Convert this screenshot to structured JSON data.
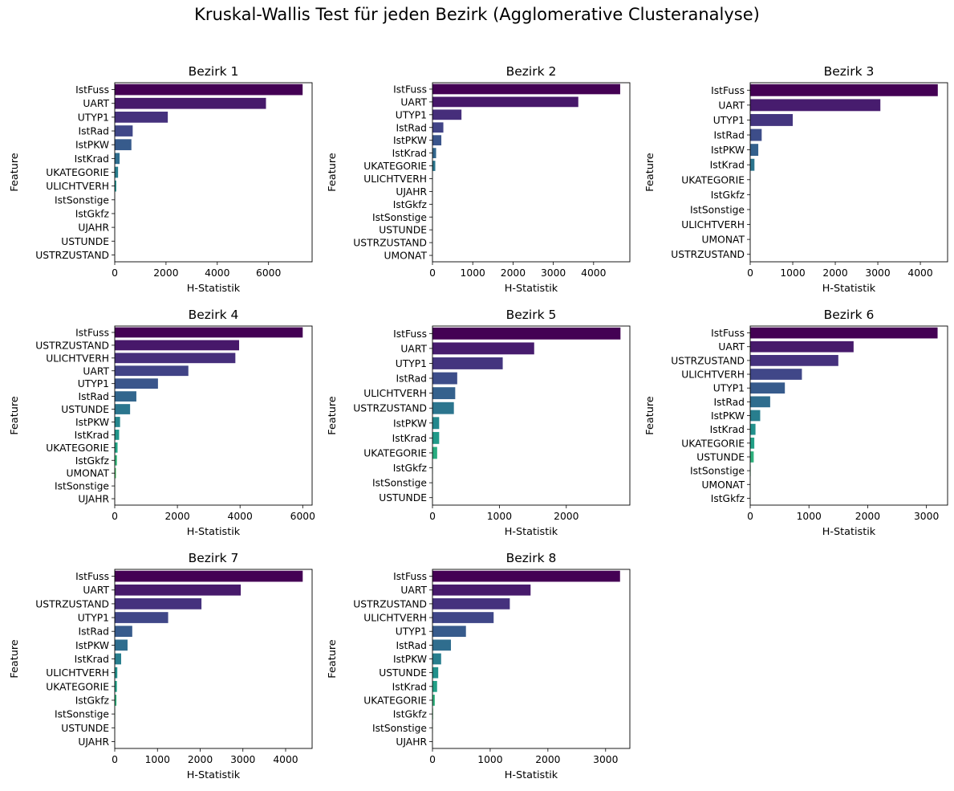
{
  "figure": {
    "title": "Kruskal-Wallis Test für jeden Bezirk (Agglomerative Clusteranalyse)"
  },
  "chart_data": [
    {
      "type": "bar",
      "orientation": "horizontal",
      "title": "Bezirk 1",
      "xlabel": "H-Statistik",
      "ylabel": "Feature",
      "xlim": [
        0,
        7700
      ],
      "xticks": [
        0,
        2000,
        4000,
        6000
      ],
      "categories": [
        "IstFuss",
        "UART",
        "UTYP1",
        "IstRad",
        "IstPKW",
        "IstKrad",
        "UKATEGORIE",
        "ULICHTVERH",
        "IstSonstige",
        "IstGkfz",
        "UJAHR",
        "USTUNDE",
        "USTRZUSTAND"
      ],
      "values": [
        7330,
        5900,
        2070,
        700,
        650,
        190,
        130,
        60,
        5,
        3,
        2,
        1,
        1
      ]
    },
    {
      "type": "bar",
      "orientation": "horizontal",
      "title": "Bezirk 2",
      "xlabel": "H-Statistik",
      "ylabel": "Feature",
      "xlim": [
        0,
        4900
      ],
      "xticks": [
        0,
        1000,
        2000,
        3000,
        4000
      ],
      "categories": [
        "IstFuss",
        "UART",
        "UTYP1",
        "IstRad",
        "IstPKW",
        "IstKrad",
        "UKATEGORIE",
        "ULICHTVERH",
        "UJAHR",
        "IstGkfz",
        "IstSonstige",
        "USTUNDE",
        "USTRZUSTAND",
        "UMONAT"
      ],
      "values": [
        4660,
        3620,
        720,
        270,
        220,
        90,
        70,
        5,
        3,
        2,
        2,
        1,
        1,
        1
      ]
    },
    {
      "type": "bar",
      "orientation": "horizontal",
      "title": "Bezirk 3",
      "xlabel": "H-Statistik",
      "ylabel": "Feature",
      "xlim": [
        0,
        4640
      ],
      "xticks": [
        0,
        1000,
        2000,
        3000,
        4000
      ],
      "categories": [
        "IstFuss",
        "UART",
        "UTYP1",
        "IstRad",
        "IstPKW",
        "IstKrad",
        "UKATEGORIE",
        "IstGkfz",
        "IstSonstige",
        "ULICHTVERH",
        "UMONAT",
        "USTRZUSTAND"
      ],
      "values": [
        4410,
        3060,
        1000,
        270,
        190,
        100,
        5,
        3,
        2,
        2,
        1,
        1
      ]
    },
    {
      "type": "bar",
      "orientation": "horizontal",
      "title": "Bezirk 4",
      "xlabel": "H-Statistik",
      "ylabel": "Feature",
      "xlim": [
        0,
        6300
      ],
      "xticks": [
        0,
        2000,
        4000,
        6000
      ],
      "categories": [
        "IstFuss",
        "USTRZUSTAND",
        "ULICHTVERH",
        "UART",
        "UTYP1",
        "IstRad",
        "USTUNDE",
        "IstPKW",
        "IstKrad",
        "UKATEGORIE",
        "IstGkfz",
        "UMONAT",
        "IstSonstige",
        "UJAHR"
      ],
      "values": [
        6000,
        3970,
        3850,
        2350,
        1380,
        690,
        490,
        170,
        140,
        90,
        70,
        40,
        5,
        2
      ]
    },
    {
      "type": "bar",
      "orientation": "horizontal",
      "title": "Bezirk 5",
      "xlabel": "H-Statistik",
      "ylabel": "Feature",
      "xlim": [
        0,
        2950
      ],
      "xticks": [
        0,
        1000,
        2000
      ],
      "categories": [
        "IstFuss",
        "UART",
        "UTYP1",
        "IstRad",
        "ULICHTVERH",
        "USTRZUSTAND",
        "IstPKW",
        "IstKrad",
        "UKATEGORIE",
        "IstGkfz",
        "IstSonstige",
        "USTUNDE"
      ],
      "values": [
        2810,
        1520,
        1050,
        370,
        340,
        320,
        100,
        100,
        70,
        5,
        3,
        2
      ]
    },
    {
      "type": "bar",
      "orientation": "horizontal",
      "title": "Bezirk 6",
      "xlabel": "H-Statistik",
      "ylabel": "Feature",
      "xlim": [
        0,
        3360
      ],
      "xticks": [
        0,
        1000,
        2000,
        3000
      ],
      "categories": [
        "IstFuss",
        "UART",
        "USTRZUSTAND",
        "ULICHTVERH",
        "UTYP1",
        "IstRad",
        "IstPKW",
        "IstKrad",
        "UKATEGORIE",
        "USTUNDE",
        "IstSonstige",
        "UMONAT",
        "IstGkfz"
      ],
      "values": [
        3190,
        1760,
        1500,
        880,
        590,
        340,
        170,
        90,
        70,
        60,
        8,
        3,
        2
      ]
    },
    {
      "type": "bar",
      "orientation": "horizontal",
      "title": "Bezirk 7",
      "xlabel": "H-Statistik",
      "ylabel": "Feature",
      "xlim": [
        0,
        4620
      ],
      "xticks": [
        0,
        1000,
        2000,
        3000,
        4000
      ],
      "categories": [
        "IstFuss",
        "UART",
        "USTRZUSTAND",
        "UTYP1",
        "IstRad",
        "IstPKW",
        "IstKrad",
        "ULICHTVERH",
        "UKATEGORIE",
        "IstGkfz",
        "IstSonstige",
        "USTUNDE",
        "UJAHR"
      ],
      "values": [
        4400,
        2950,
        2030,
        1250,
        410,
        300,
        150,
        60,
        50,
        40,
        10,
        3,
        1
      ]
    },
    {
      "type": "bar",
      "orientation": "horizontal",
      "title": "Bezirk 8",
      "xlabel": "H-Statistik",
      "ylabel": "Feature",
      "xlim": [
        0,
        3420
      ],
      "xticks": [
        0,
        1000,
        2000,
        3000
      ],
      "categories": [
        "IstFuss",
        "UART",
        "USTRZUSTAND",
        "ULICHTVERH",
        "UTYP1",
        "IstRad",
        "IstPKW",
        "USTUNDE",
        "IstKrad",
        "UKATEGORIE",
        "IstGkfz",
        "IstSonstige",
        "UJAHR"
      ],
      "values": [
        3250,
        1700,
        1340,
        1060,
        580,
        320,
        150,
        100,
        80,
        40,
        10,
        5,
        2
      ]
    }
  ],
  "palette": [
    "#440154",
    "#482475",
    "#414487",
    "#355f8d",
    "#2a788e",
    "#21918c",
    "#22a884",
    "#44bf70",
    "#7ad151",
    "#bddf26",
    "#fde725"
  ]
}
